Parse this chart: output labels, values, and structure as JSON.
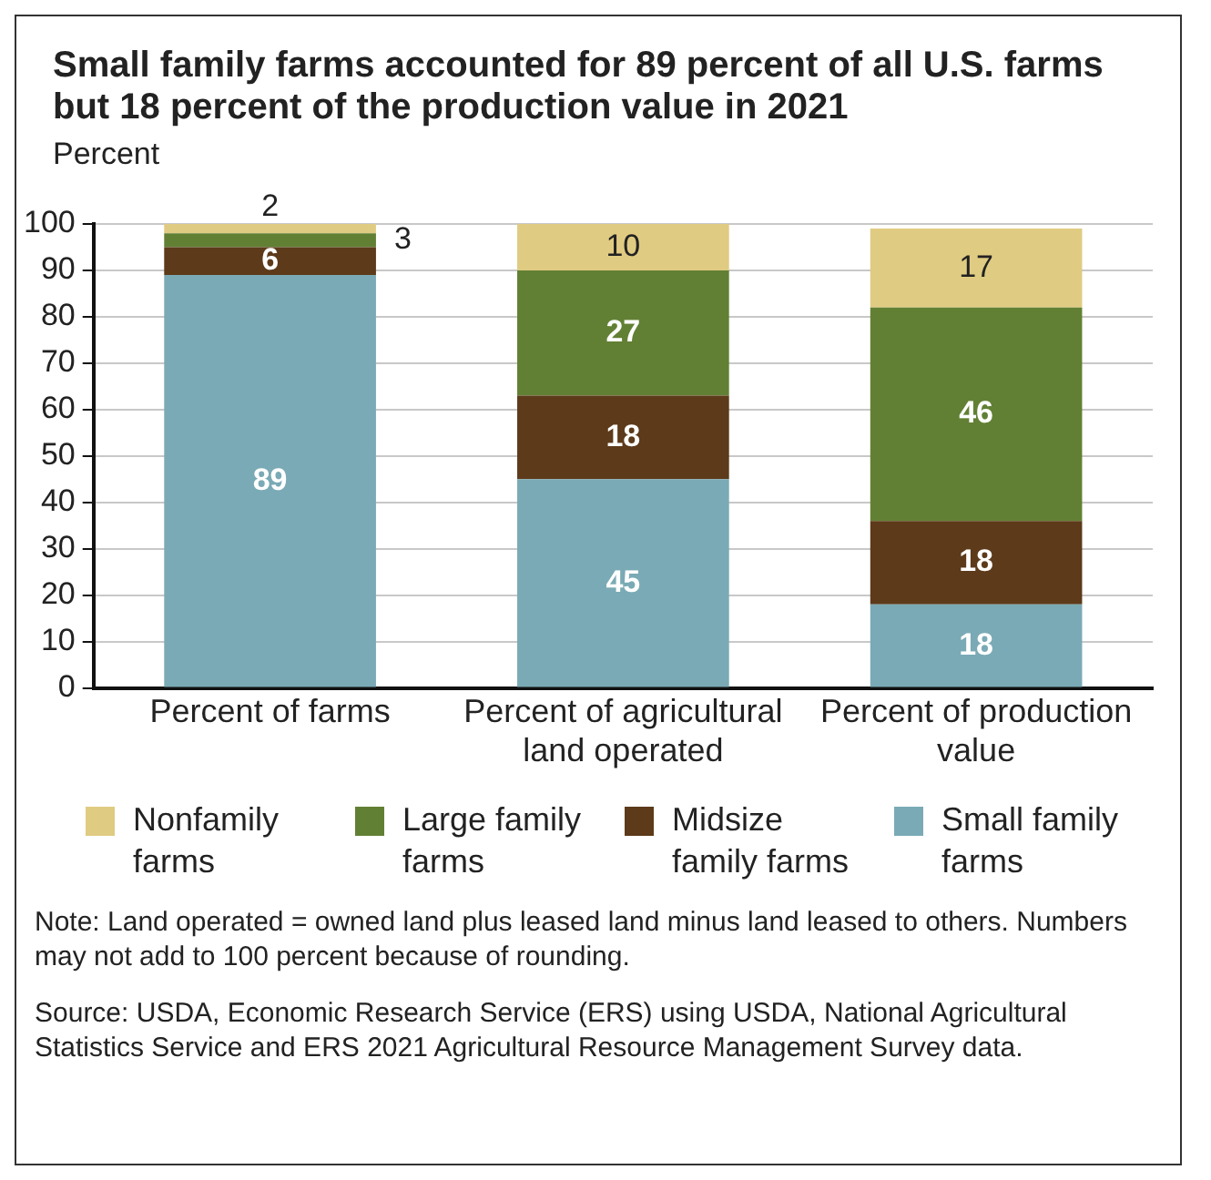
{
  "chart_data": {
    "type": "bar",
    "title": "Small family farms accounted for 89 percent of all U.S. farms but 18 percent of the production value in 2021",
    "ylabel": "Percent",
    "categories": [
      "Percent of farms",
      "Percent of agricultural land operated",
      "Percent of production value"
    ],
    "stacked": true,
    "series": [
      {
        "name": "Small family farms",
        "color": "#7aaab5",
        "values": [
          89,
          45,
          18
        ]
      },
      {
        "name": "Midsize family farms",
        "color": "#5c3a1a",
        "values": [
          6,
          18,
          18
        ]
      },
      {
        "name": "Large family farms",
        "color": "#628034",
        "values": [
          3,
          27,
          46
        ]
      },
      {
        "name": "Nonfamily farms",
        "color": "#e0cb82",
        "values": [
          2,
          10,
          17
        ]
      }
    ],
    "ylim": [
      0,
      100
    ],
    "yticks": [
      0,
      10,
      20,
      30,
      40,
      50,
      60,
      70,
      80,
      90,
      100
    ],
    "grid": "y",
    "legend": "bottom",
    "data_labels": true,
    "annotations": [
      "Note: Land operated = owned land plus leased land minus land leased to others. Numbers may not add to 100 percent because of rounding.",
      "Source: USDA, Economic Research Service (ERS) using USDA, National Agricultural Statistics Service and ERS 2021 Agricultural Resource Management Survey data."
    ]
  }
}
